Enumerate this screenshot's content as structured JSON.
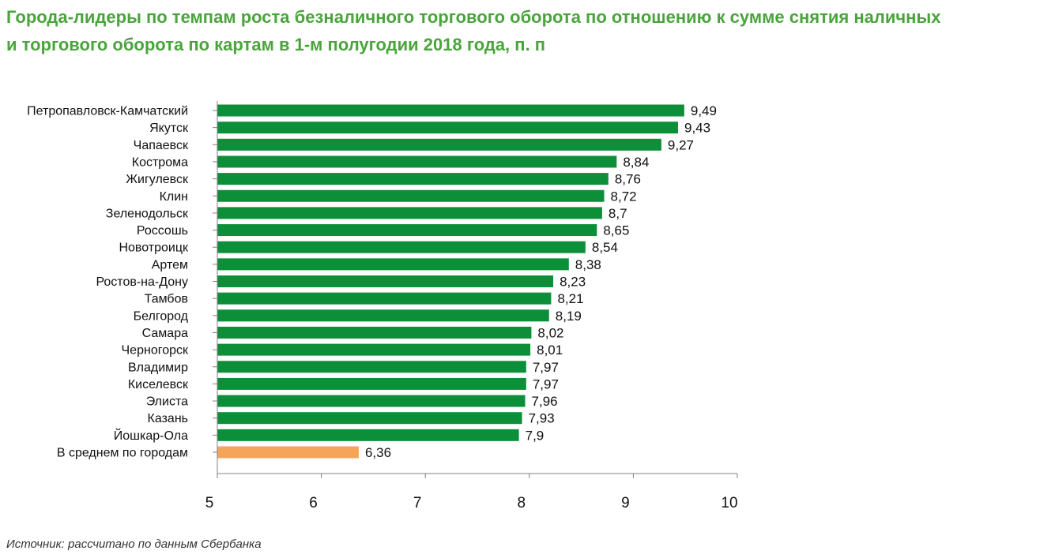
{
  "title_lines": [
    "Города-лидеры по темпам роста безналичного торгового оборота по отношению к сумме снятия наличных",
    "и торгового оборота по картам в 1-м полугодии 2018 года, п. п"
  ],
  "source": "Источник: рассчитано по данным Сбербанка",
  "colors": {
    "title": "#4aa43c",
    "bar": "#0d8f3a",
    "highlight_bar": "#f5a55a",
    "axis": "#808080"
  },
  "chart_data": {
    "type": "bar",
    "orientation": "horizontal",
    "title": "Города-лидеры по темпам роста безналичного торгового оборота по отношению к сумме снятия наличных и торгового оборота по картам в 1-м полугодии 2018 года, п. п",
    "categories": [
      "Петропавловск-Камчатский",
      "Якутск",
      "Чапаевск",
      "Кострома",
      "Жигулевск",
      "Клин",
      "Зеленодольск",
      "Россошь",
      "Новотроицк",
      "Артем",
      "Ростов-на-Дону",
      "Тамбов",
      "Белгород",
      "Самара",
      "Черногорск",
      "Владимир",
      "Киселевск",
      "Элиста",
      "Казань",
      "Йошкар-Ола",
      "В среднем по городам"
    ],
    "values": [
      9.49,
      9.43,
      9.27,
      8.84,
      8.76,
      8.72,
      8.7,
      8.65,
      8.54,
      8.38,
      8.23,
      8.21,
      8.19,
      8.02,
      8.01,
      7.97,
      7.97,
      7.96,
      7.93,
      7.9,
      6.36
    ],
    "value_labels": [
      "9,49",
      "9,43",
      "9,27",
      "8,84",
      "8,76",
      "8,72",
      "8,7",
      "8,65",
      "8,54",
      "8,38",
      "8,23",
      "8,21",
      "8,19",
      "8,02",
      "8,01",
      "7,97",
      "7,97",
      "7,96",
      "7,93",
      "7,9",
      "6,36"
    ],
    "highlight_category": "В среднем по городам",
    "xlim": [
      5,
      10
    ],
    "xticks": [
      5,
      6,
      7,
      8,
      9,
      10
    ],
    "xlabel": "",
    "ylabel": "",
    "grid": false,
    "legend": "none"
  }
}
